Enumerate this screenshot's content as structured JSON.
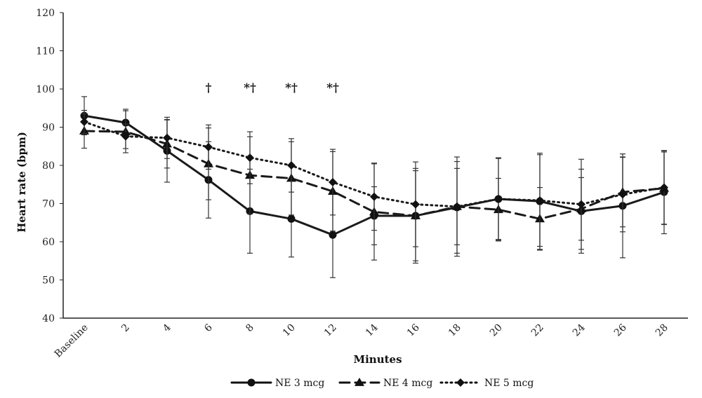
{
  "chart_data": {
    "type": "line",
    "title": "",
    "xlabel": "Minutes",
    "ylabel": "Heart rate (bpm)",
    "ylim": [
      40,
      120
    ],
    "yticks": [
      40,
      50,
      60,
      70,
      80,
      90,
      100,
      110,
      120
    ],
    "categories": [
      "Baseline",
      "2",
      "4",
      "6",
      "8",
      "10",
      "12",
      "14",
      "16",
      "18",
      "20",
      "22",
      "24",
      "26",
      "28"
    ],
    "grid": false,
    "legend_position": "bottom",
    "series": [
      {
        "name": "NE 3 mcg",
        "color": "#1a1a1a",
        "line_style": "solid",
        "marker": "circle",
        "values": [
          93,
          91.2,
          83.8,
          76.2,
          68,
          66,
          61.8,
          66.8,
          66.8,
          69,
          71.2,
          70.6,
          68,
          69.4,
          73
        ],
        "errors": [
          5,
          3.5,
          8.2,
          10,
          11,
          10,
          11.2,
          7.6,
          11.8,
          12,
          10.8,
          12.6,
          11,
          13.6,
          10.9
        ]
      },
      {
        "name": "NE 4 mcg",
        "color": "#1a1a1a",
        "line_style": "dashed",
        "marker": "triangle",
        "values": [
          89,
          88.8,
          85.6,
          80.4,
          77.4,
          76.6,
          73.2,
          67.8,
          66.8,
          69.2,
          68.4,
          66,
          68.6,
          73,
          74
        ],
        "errors": [
          4.5,
          5.5,
          6.3,
          9.4,
          10.1,
          9.6,
          10.4,
          12.6,
          12.4,
          10,
          8.2,
          8.2,
          8.2,
          9.1,
          9.5
        ]
      },
      {
        "name": "NE 5 mcg",
        "color": "#1a1a1a",
        "line_style": "dotted",
        "marker": "diamond",
        "values": [
          91.4,
          87.6,
          87.2,
          84.8,
          82,
          80,
          75.6,
          71.8,
          69.8,
          69.2,
          71.2,
          70.8,
          69.8,
          72.4,
          74.2
        ],
        "errors": [
          3,
          3.2,
          5.4,
          5.8,
          6.8,
          7,
          8.6,
          8.8,
          11.1,
          13,
          10.6,
          12,
          11.8,
          9.8,
          9.6
        ]
      }
    ],
    "annotations": [
      {
        "category": "6",
        "text": "†"
      },
      {
        "category": "8",
        "text": "*†"
      },
      {
        "category": "10",
        "text": "*†"
      },
      {
        "category": "12",
        "text": "*†"
      }
    ]
  }
}
